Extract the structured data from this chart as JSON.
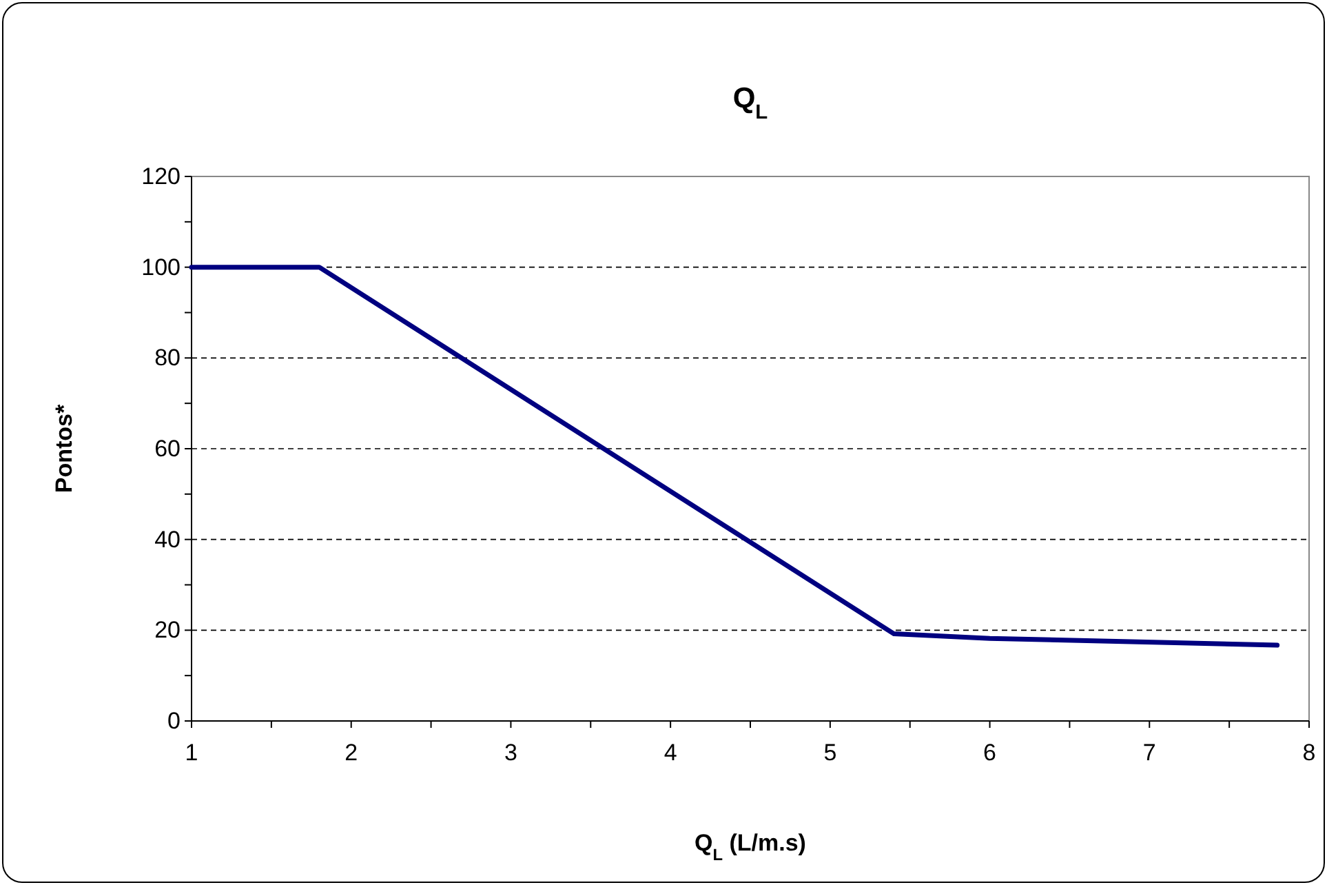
{
  "chart_data": {
    "type": "line",
    "title": "Q$_{L}$",
    "xlabel": "Q$_{L}$ (L/m.s)",
    "ylabel": "Pontos*",
    "x": [
      1,
      1.8,
      5.4,
      6,
      7.8
    ],
    "series": [
      {
        "color": "#000080",
        "values": [
          100,
          100,
          19.2,
          18.2,
          16.7
        ]
      }
    ],
    "xlim": [
      1,
      8
    ],
    "xticks": [
      1,
      {
        "value": 1.5,
        "label": null
      },
      2,
      {
        "value": 2.5,
        "label": null
      },
      3,
      {
        "value": 3.5,
        "label": null
      },
      4,
      {
        "value": 4.5,
        "label": null
      },
      5,
      {
        "value": 5.5,
        "label": null
      },
      6,
      {
        "value": 6.5,
        "label": null
      },
      7,
      {
        "value": 7.5,
        "label": null
      },
      8
    ],
    "ylim": [
      0,
      120
    ],
    "yticks": [
      0,
      {
        "value": 10,
        "label": null
      },
      20,
      {
        "value": 30,
        "label": null
      },
      40,
      {
        "value": 50,
        "label": null
      },
      60,
      {
        "value": 70,
        "label": null
      },
      80,
      {
        "value": 90,
        "label": null
      },
      100,
      {
        "value": 110,
        "label": null
      },
      120
    ],
    "grid": "y",
    "marker": "none",
    "line_style": "solid"
  }
}
